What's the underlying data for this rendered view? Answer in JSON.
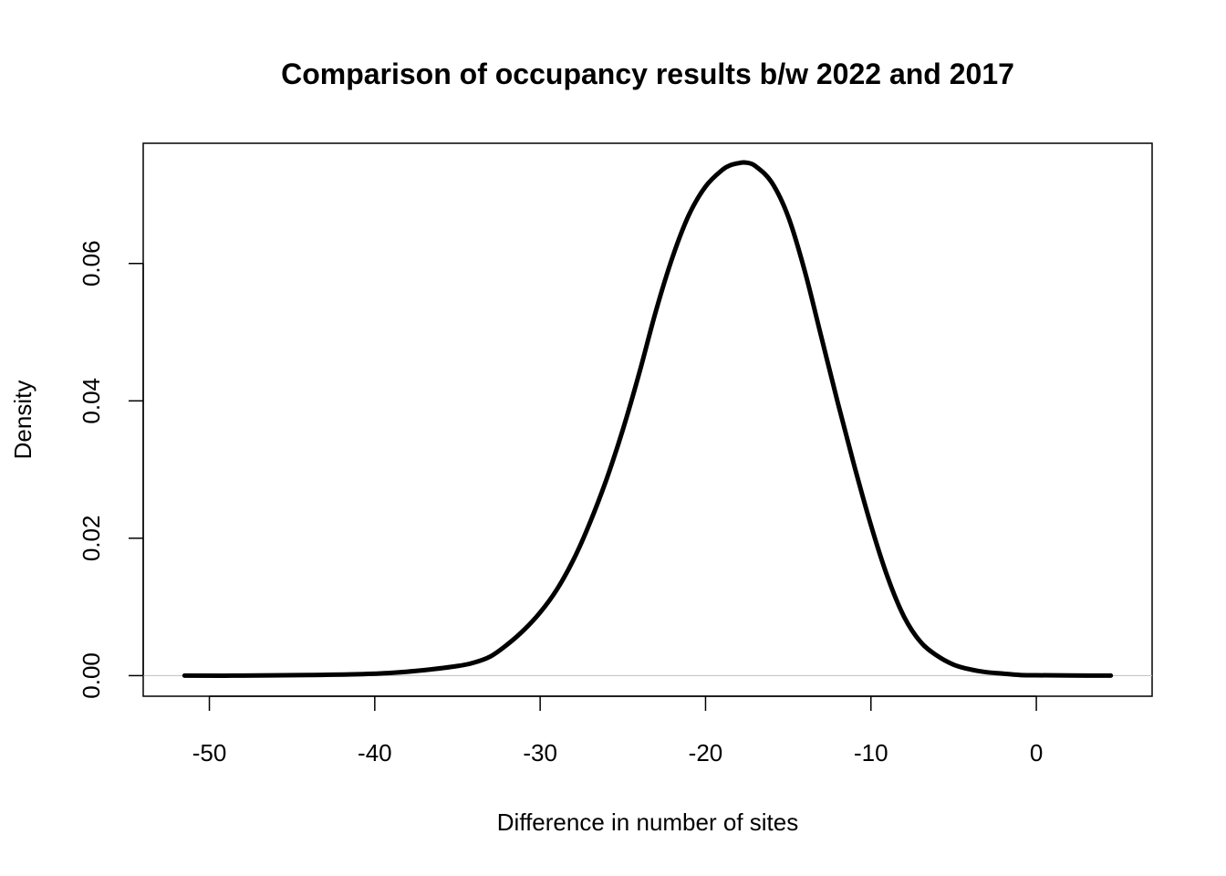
{
  "chart_data": {
    "type": "line",
    "title": "Comparison of occupancy results b/w 2022 and 2017",
    "xlabel": "Difference in number of sites",
    "ylabel": "Density",
    "xlim": [
      -54,
      7
    ],
    "ylim": [
      -0.003,
      0.0775
    ],
    "x_ticks": [
      -50,
      -40,
      -30,
      -20,
      -10,
      0
    ],
    "x_tick_labels": [
      "-50",
      "-40",
      "-30",
      "-20",
      "-10",
      "0"
    ],
    "y_ticks": [
      0.0,
      0.02,
      0.04,
      0.06
    ],
    "y_tick_labels": [
      "0.00",
      "0.02",
      "0.04",
      "0.06"
    ],
    "baseline": 0,
    "grid": false,
    "series": [
      {
        "color": "#000000",
        "x": [
          -51.5,
          -48,
          -44,
          -41,
          -39,
          -37,
          -35,
          -34,
          -33,
          -32,
          -31,
          -30,
          -29,
          -28,
          -27,
          -26,
          -25,
          -24,
          -23,
          -22,
          -21,
          -20,
          -19,
          -18.5,
          -18,
          -17.6,
          -17,
          -16,
          -15,
          -14,
          -13,
          -12,
          -11,
          -10,
          -9,
          -8,
          -7,
          -6,
          -5,
          -4,
          -3,
          -2,
          -1,
          0,
          2,
          4.5
        ],
        "y": [
          0.0,
          0.0,
          0.0001,
          0.0002,
          0.0004,
          0.0008,
          0.0014,
          0.0019,
          0.0028,
          0.0045,
          0.0066,
          0.0092,
          0.0125,
          0.0168,
          0.0222,
          0.0285,
          0.0358,
          0.0441,
          0.0531,
          0.0609,
          0.0671,
          0.0712,
          0.0736,
          0.0743,
          0.0746,
          0.0747,
          0.0742,
          0.0718,
          0.0668,
          0.0589,
          0.0493,
          0.0397,
          0.0305,
          0.0219,
          0.0144,
          0.0086,
          0.0049,
          0.0029,
          0.0016,
          0.0009,
          0.0005,
          0.0003,
          0.0001,
          5e-05,
          2e-05,
          0.0
        ]
      }
    ]
  }
}
